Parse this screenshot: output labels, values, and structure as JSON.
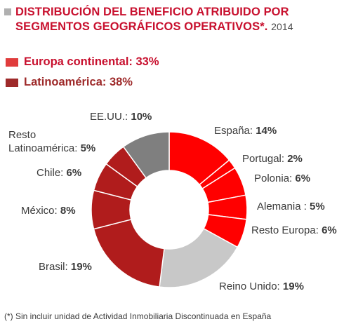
{
  "header": {
    "title_line1": "DISTRIBUCIÓN DEL BENEFICIO ATRIBUIDO POR",
    "title_line2": "SEGMENTOS GEOGRÁFICOS OPERATIVOS*.",
    "year": "2014"
  },
  "legend": [
    {
      "label": "Europa continental: 33%",
      "color": "#e03c3c"
    },
    {
      "label": "Latinoamérica: 38%",
      "color": "#9e2a2a"
    }
  ],
  "chart_data": {
    "type": "pie",
    "donut": true,
    "slices": [
      {
        "name": "España",
        "value": 14,
        "display": "14%",
        "color": "#ff0000"
      },
      {
        "name": "Portugal",
        "value": 2,
        "display": "2%",
        "color": "#ff0000"
      },
      {
        "name": "Polonia",
        "value": 6,
        "display": "6%",
        "color": "#ff0000"
      },
      {
        "name": "Alemania",
        "value": 5,
        "display": "5%",
        "color": "#ff0000"
      },
      {
        "name": "Resto Europa",
        "value": 6,
        "display": "6%",
        "color": "#ff0000"
      },
      {
        "name": "Reino Unido",
        "value": 19,
        "display": "19%",
        "color": "#c8c8c8"
      },
      {
        "name": "Brasil",
        "value": 19,
        "display": "19%",
        "color": "#b01c1c"
      },
      {
        "name": "México",
        "value": 8,
        "display": "8%",
        "color": "#b01c1c"
      },
      {
        "name": "Chile",
        "value": 6,
        "display": "6%",
        "color": "#b01c1c"
      },
      {
        "name": "Resto Latinoamérica",
        "value": 5,
        "display": "5%",
        "color": "#b01c1c"
      },
      {
        "name": "EE.UU.",
        "value": 10,
        "display": "10%",
        "color": "#7f7f7f"
      }
    ],
    "labels": {
      "espana": {
        "name": "España:",
        "pct": "14%"
      },
      "portugal": {
        "name": "Portugal:",
        "pct": "2%"
      },
      "polonia": {
        "name": "Polonia:",
        "pct": "6%"
      },
      "alemania": {
        "name": "Alemania :",
        "pct": "5%"
      },
      "resto_europa": {
        "name": "Resto Europa:",
        "pct": "6%"
      },
      "reino_unido": {
        "name": "Reino Unido:",
        "pct": "19%"
      },
      "brasil": {
        "name": "Brasil:",
        "pct": "19%"
      },
      "mexico": {
        "name": "México:",
        "pct": "8%"
      },
      "chile": {
        "name": "Chile:",
        "pct": "6%"
      },
      "resto_latam_line1": "Resto",
      "resto_latam": {
        "name": "Latinoamérica:",
        "pct": "5%"
      },
      "eeuu": {
        "name": "EE.UU.:",
        "pct": "10%"
      }
    }
  },
  "footnote": "(*) Sin incluir unidad de Actividad Inmobiliaria Discontinuada en España"
}
